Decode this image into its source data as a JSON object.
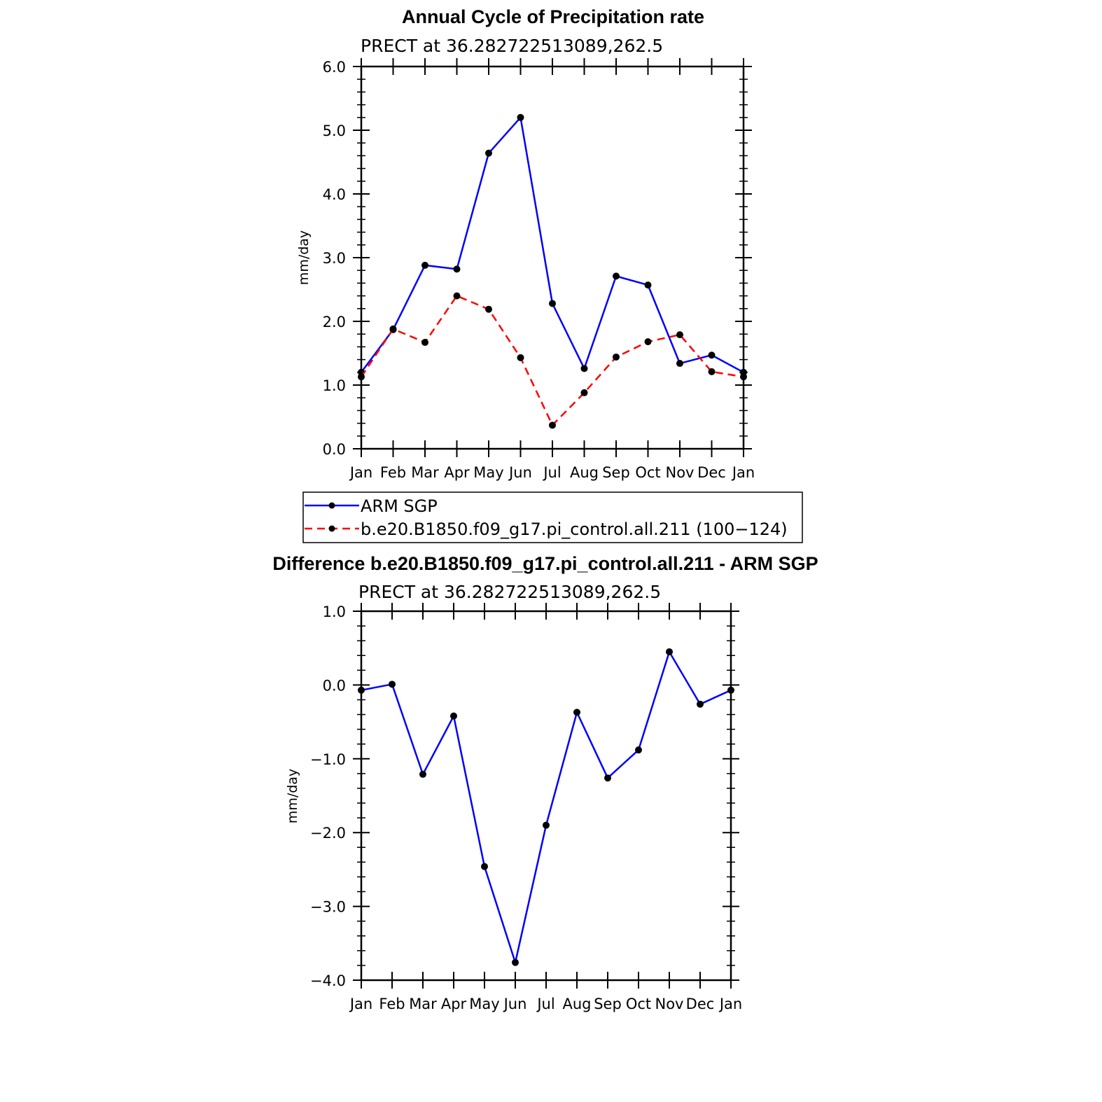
{
  "chart_data": [
    {
      "type": "line",
      "title": "Annual Cycle of Precipitation rate",
      "subtitle": "PRECT at 36.282722513089,262.5",
      "ylabel": "mm/day",
      "ylim": [
        0,
        6
      ],
      "yticks": [
        "0.0",
        "1.0",
        "2.0",
        "3.0",
        "4.0",
        "5.0",
        "6.0"
      ],
      "categories": [
        "Jan",
        "Feb",
        "Mar",
        "Apr",
        "May",
        "Jun",
        "Jul",
        "Aug",
        "Sep",
        "Oct",
        "Nov",
        "Dec",
        "Jan"
      ],
      "series": [
        {
          "name": "ARM SGP",
          "color": "#0000ff",
          "dash": false,
          "values": [
            1.2,
            1.87,
            2.88,
            2.82,
            4.64,
            5.2,
            2.28,
            1.26,
            2.71,
            2.57,
            1.34,
            1.47,
            1.2
          ]
        },
        {
          "name": "b.e20.B1850.f09_g17.pi_control.all.211 (100−124)",
          "color": "#ff0000",
          "dash": true,
          "values": [
            1.13,
            1.88,
            1.67,
            2.4,
            2.19,
            1.43,
            0.37,
            0.88,
            1.44,
            1.68,
            1.79,
            1.21,
            1.13
          ]
        }
      ],
      "legend": "bottom"
    },
    {
      "type": "line",
      "title": "Difference b.e20.B1850.f09_g17.pi_control.all.211 - ARM SGP",
      "subtitle": "PRECT at 36.282722513089,262.5",
      "ylabel": "mm/day",
      "ylim": [
        -4,
        1
      ],
      "yticks": [
        "−4.0",
        "−3.0",
        "−2.0",
        "−1.0",
        "0.0",
        "1.0"
      ],
      "categories": [
        "Jan",
        "Feb",
        "Mar",
        "Apr",
        "May",
        "Jun",
        "Jul",
        "Aug",
        "Sep",
        "Oct",
        "Nov",
        "Dec",
        "Jan"
      ],
      "series": [
        {
          "color": "#0000ff",
          "dash": false,
          "values": [
            -0.07,
            0.01,
            -1.21,
            -0.42,
            -2.46,
            -3.76,
            -1.9,
            -0.37,
            -1.26,
            -0.88,
            0.45,
            -0.26,
            -0.07
          ]
        }
      ]
    }
  ]
}
